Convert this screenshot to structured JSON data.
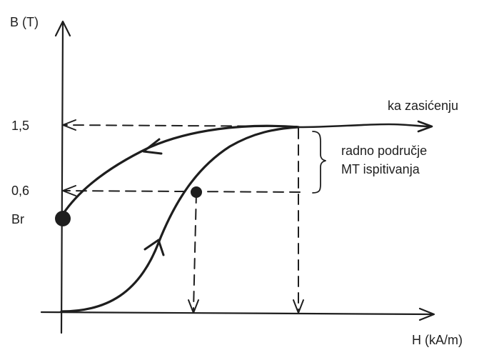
{
  "axes": {
    "y_label": "B (T)",
    "x_label": "H (kA/m)"
  },
  "ticks": {
    "high": "1,5",
    "low": "0,6"
  },
  "labels": {
    "remanence": "Br",
    "saturation": "ka zasićenju",
    "region_line1": "radno područje",
    "region_line2": "MT ispitivanja"
  },
  "colors": {
    "ink": "#1e1e1e",
    "background": "#ffffff"
  }
}
